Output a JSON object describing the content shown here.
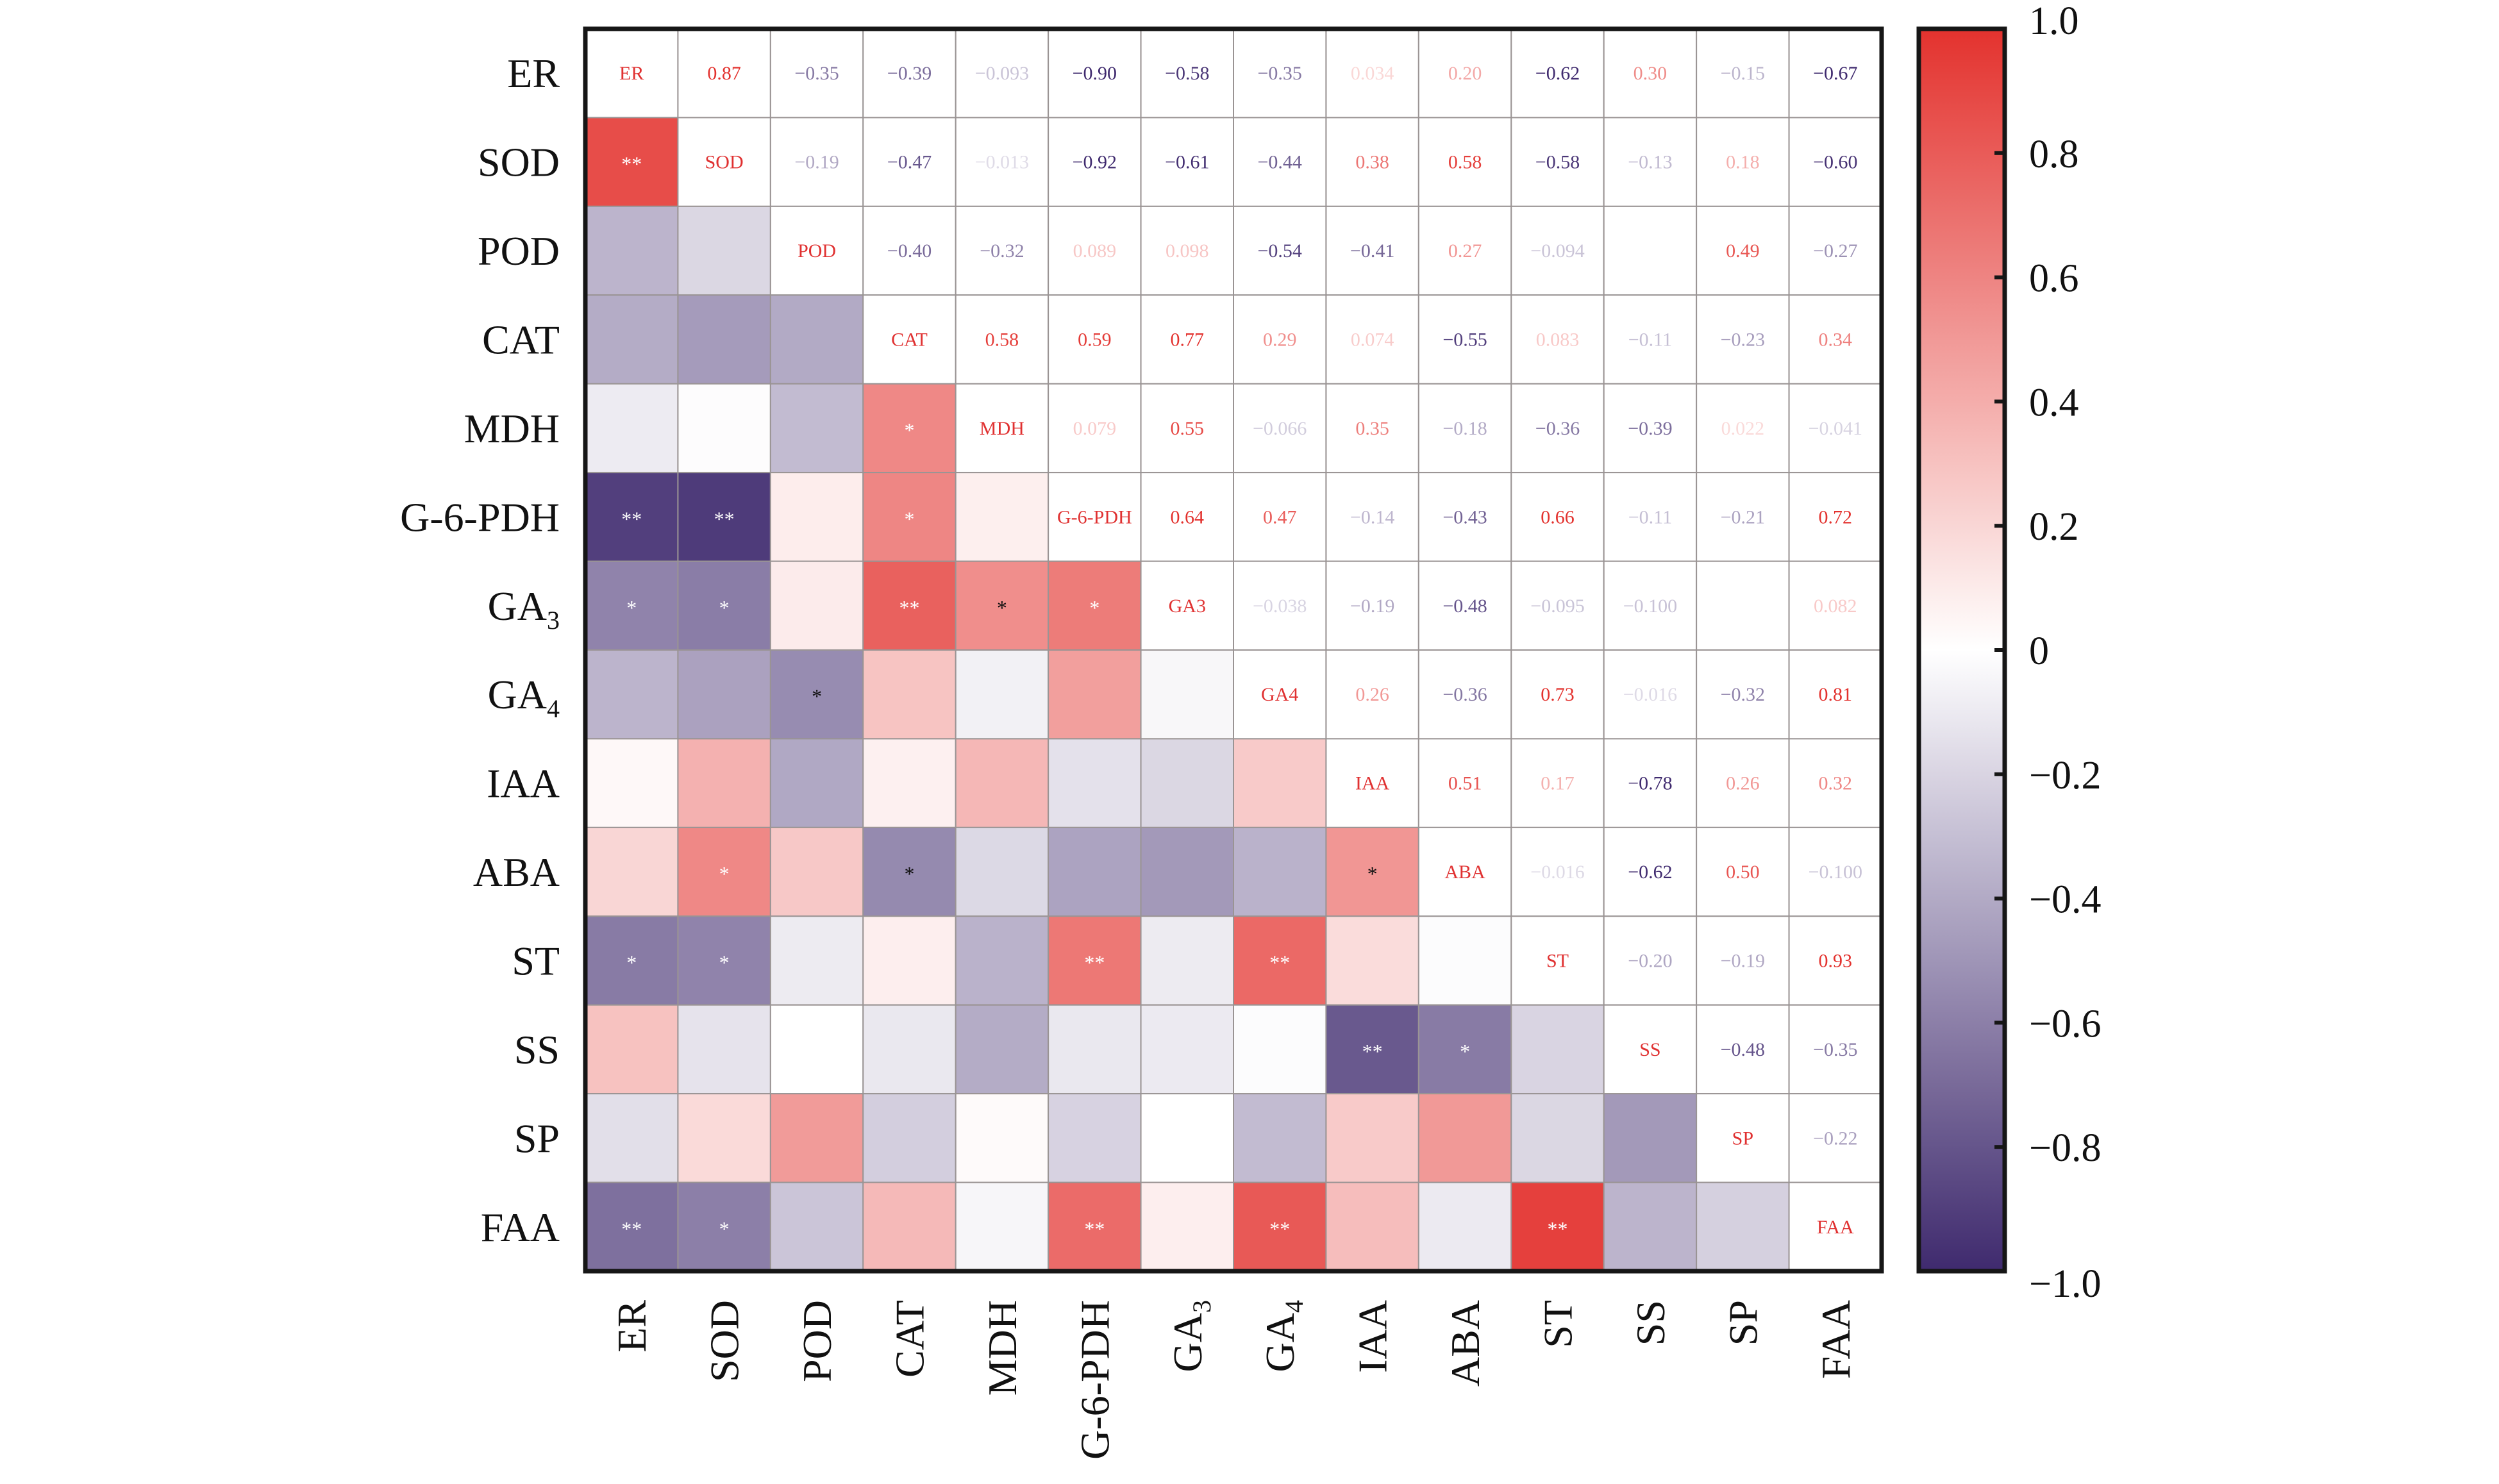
{
  "chart_data": {
    "type": "heatmap",
    "title": "",
    "variables": [
      "ER",
      "SOD",
      "POD",
      "CAT",
      "MDH",
      "G-6-PDH",
      "GA3",
      "GA4",
      "IAA",
      "ABA",
      "ST",
      "SS",
      "SP",
      "FAA"
    ],
    "row_labels": [
      {
        "base": "ER",
        "sub": ""
      },
      {
        "base": "SOD",
        "sub": ""
      },
      {
        "base": "POD",
        "sub": ""
      },
      {
        "base": "CAT",
        "sub": ""
      },
      {
        "base": "MDH",
        "sub": ""
      },
      {
        "base": "G-6-PDH",
        "sub": ""
      },
      {
        "base": "GA",
        "sub": "3"
      },
      {
        "base": "GA",
        "sub": "4"
      },
      {
        "base": "IAA",
        "sub": ""
      },
      {
        "base": "ABA",
        "sub": ""
      },
      {
        "base": "ST",
        "sub": ""
      },
      {
        "base": "SS",
        "sub": ""
      },
      {
        "base": "SP",
        "sub": ""
      },
      {
        "base": "FAA",
        "sub": ""
      }
    ],
    "diagonal_labels": [
      "ER",
      "SOD",
      "POD",
      "CAT",
      "MDH",
      "G-6-PDH",
      "GA3",
      "GA4",
      "IAA",
      "ABA",
      "ST",
      "SS",
      "SP",
      "FAA"
    ],
    "upper_triangle_values": [
      [
        "0.87",
        "-0.35",
        "-0.39",
        "-0.093",
        "-0.90",
        "-0.58",
        "-0.35",
        "0.034",
        "0.20",
        "-0.62",
        "0.30",
        "-0.15",
        "-0.67"
      ],
      [
        "-0.19",
        "-0.47",
        "-0.013",
        "-0.92",
        "-0.61",
        "-0.44",
        "0.38",
        "0.58",
        "-0.58",
        "-0.13",
        "0.18",
        "-0.60"
      ],
      [
        "-0.40",
        "-0.32",
        "0.089",
        "0.098",
        "-0.54",
        "-0.41",
        "0.27",
        "-0.094",
        "",
        "0.49",
        "-0.27"
      ],
      [
        "0.58",
        "0.59",
        "0.77",
        "0.29",
        "0.074",
        "-0.55",
        "0.083",
        "-0.11",
        "-0.23",
        "0.34"
      ],
      [
        "0.079",
        "0.55",
        "-0.066",
        "0.35",
        "-0.18",
        "-0.36",
        "-0.39",
        "0.022",
        "-0.041"
      ],
      [
        "0.64",
        "0.47",
        "-0.14",
        "-0.43",
        "0.66",
        "-0.11",
        "-0.21",
        "0.72"
      ],
      [
        "-0.038",
        "-0.19",
        "-0.48",
        "-0.095",
        "-0.100",
        "",
        "0.082"
      ],
      [
        "0.26",
        "-0.36",
        "0.73",
        "-0.016",
        "-0.32",
        "0.81"
      ],
      [
        "0.51",
        "0.17",
        "-0.78",
        "0.26",
        "0.32"
      ],
      [
        "-0.016",
        "-0.62",
        "0.50",
        "-0.100"
      ],
      [
        "-0.20",
        "-0.19",
        "0.93"
      ],
      [
        "-0.48",
        "-0.35"
      ],
      [
        "-0.22"
      ],
      []
    ],
    "significance_lower": [
      [],
      [
        "**"
      ],
      [
        "",
        ""
      ],
      [
        "",
        "",
        ""
      ],
      [
        "",
        "",
        "",
        "*"
      ],
      [
        "**",
        "**",
        "",
        "*",
        ""
      ],
      [
        "*",
        "*",
        "",
        "**",
        "*",
        "*"
      ],
      [
        "",
        "",
        "*",
        "",
        "",
        "",
        ""
      ],
      [
        "",
        "",
        "",
        "",
        "",
        "",
        "",
        ""
      ],
      [
        "",
        "*",
        "",
        "*",
        "",
        "",
        "",
        "",
        "*"
      ],
      [
        "*",
        "*",
        "",
        "",
        "",
        "**",
        "",
        "**",
        "",
        ""
      ],
      [
        "",
        "",
        "",
        "",
        "",
        "",
        "",
        "",
        "**",
        "*",
        ""
      ],
      [
        "",
        "",
        "",
        "",
        "",
        "",
        "",
        "",
        "",
        "",
        "",
        ""
      ],
      [
        "**",
        "*",
        "",
        "",
        "",
        "**",
        "",
        "**",
        "",
        "",
        "**",
        "",
        ""
      ]
    ],
    "color_scale": {
      "min": -1.0,
      "max": 1.0,
      "neg_color": "#3f2a6e",
      "zero_color": "#ffffff",
      "pos_color": "#e3322e"
    },
    "colorbar_ticks": [
      "1.0",
      "0.8",
      "0.6",
      "0.4",
      "0.2",
      "0",
      "−0.2",
      "−0.4",
      "−0.6",
      "−0.8",
      "−1.0"
    ],
    "colorbar_tick_values": [
      1.0,
      0.8,
      0.6,
      0.4,
      0.2,
      0,
      -0.2,
      -0.4,
      -0.6,
      -0.8,
      -1.0
    ],
    "xlabel": "",
    "ylabel": "",
    "legend": "right (colorbar)",
    "grid": true
  }
}
